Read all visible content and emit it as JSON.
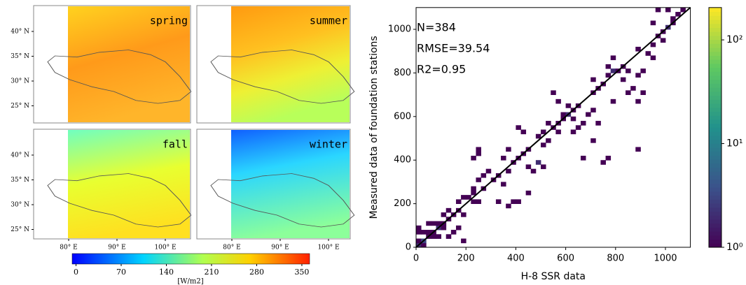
{
  "chart_data": [
    {
      "type": "map",
      "panels": [
        {
          "title": "spring"
        },
        {
          "title": "summer"
        },
        {
          "title": "fall"
        },
        {
          "title": "winter"
        }
      ],
      "lat_ticks": [
        {
          "value": 40,
          "label": "40° N"
        },
        {
          "value": 35,
          "label": "35° N"
        },
        {
          "value": 30,
          "label": "30° N"
        },
        {
          "value": 25,
          "label": "25° N"
        }
      ],
      "lon_ticks": [
        {
          "value": 80,
          "label": "80° E"
        },
        {
          "value": 90,
          "label": "90° E"
        },
        {
          "value": 100,
          "label": "100° E"
        }
      ],
      "colorbar": {
        "lim": [
          -6,
          362
        ],
        "ticks": [
          0,
          70,
          140,
          210,
          280,
          350
        ],
        "label": "[W/m2]"
      }
    },
    {
      "type": "histogram2d",
      "xlabel": "H-8 SSR data",
      "ylabel": "Measured data of foundation stations",
      "annotations": [
        "N=384",
        "RMSE=39.54",
        "R2=0.95"
      ],
      "xlim": [
        0,
        1100
      ],
      "ylim": [
        0,
        1100
      ],
      "xticks": [
        0,
        200,
        400,
        600,
        800,
        1000
      ],
      "yticks": [
        0,
        200,
        400,
        600,
        800,
        1000
      ],
      "bin_width": 20,
      "x": [
        0,
        20,
        0,
        20,
        40,
        20,
        0,
        0,
        40,
        60,
        80,
        60,
        80,
        100,
        100,
        120,
        100,
        60,
        80,
        120,
        140,
        160,
        40,
        120,
        140,
        160,
        180,
        180,
        200,
        220,
        240,
        160,
        180,
        220,
        260,
        240,
        260,
        220,
        240,
        240,
        220,
        300,
        320,
        340,
        360,
        380,
        400,
        360,
        380,
        400,
        420,
        440,
        360,
        340,
        420,
        400,
        440,
        460,
        480,
        500,
        480,
        500,
        520,
        540,
        560,
        520,
        560,
        580,
        600,
        620,
        600,
        640,
        560,
        540,
        580,
        620,
        660,
        640,
        620,
        700,
        680,
        700,
        720,
        700,
        740,
        760,
        780,
        800,
        820,
        840,
        780,
        760,
        820,
        840,
        880,
        900,
        880,
        860,
        900,
        920,
        940,
        880,
        940,
        960,
        980,
        1000,
        1020,
        1040,
        960,
        1000,
        1060,
        980,
        940,
        1020,
        880,
        700,
        440,
        760,
        740,
        660,
        320,
        280,
        500,
        780,
        720
      ],
      "y": [
        0,
        0,
        20,
        20,
        40,
        60,
        60,
        80,
        60,
        60,
        80,
        100,
        100,
        80,
        100,
        120,
        140,
        40,
        40,
        40,
        60,
        80,
        100,
        160,
        140,
        160,
        20,
        140,
        220,
        200,
        200,
        200,
        220,
        240,
        260,
        300,
        320,
        260,
        420,
        440,
        400,
        300,
        320,
        280,
        340,
        200,
        200,
        180,
        380,
        400,
        420,
        440,
        440,
        400,
        520,
        540,
        360,
        340,
        380,
        460,
        500,
        520,
        480,
        540,
        560,
        560,
        520,
        600,
        600,
        620,
        640,
        640,
        660,
        700,
        580,
        580,
        560,
        540,
        520,
        620,
        600,
        700,
        720,
        760,
        740,
        780,
        800,
        800,
        820,
        800,
        860,
        820,
        760,
        700,
        660,
        700,
        780,
        720,
        800,
        880,
        860,
        900,
        920,
        960,
        980,
        1000,
        1040,
        1060,
        1080,
        1080,
        1080,
        940,
        1020,
        1020,
        440,
        480,
        240,
        400,
        380,
        400,
        200,
        340,
        360,
        660,
        560
      ],
      "values": [
        2,
        1,
        1,
        3,
        1,
        1,
        1,
        1,
        1,
        1,
        2,
        1,
        1,
        1,
        1,
        1,
        1,
        1,
        1,
        1,
        1,
        1,
        1,
        1,
        1,
        1,
        1,
        1,
        1,
        1,
        1,
        1,
        1,
        1,
        1,
        1,
        1,
        1,
        1,
        1,
        1,
        1,
        1,
        1,
        1,
        1,
        1,
        1,
        1,
        1,
        1,
        1,
        1,
        1,
        1,
        1,
        1,
        1,
        2,
        1,
        1,
        1,
        1,
        1,
        1,
        1,
        1,
        1,
        2,
        1,
        1,
        1,
        1,
        1,
        1,
        1,
        1,
        1,
        1,
        1,
        1,
        1,
        1,
        1,
        1,
        1,
        2,
        1,
        1,
        1,
        1,
        1,
        1,
        1,
        1,
        1,
        1,
        1,
        1,
        1,
        1,
        1,
        1,
        1,
        1,
        2,
        1,
        1,
        1,
        1,
        1,
        1,
        1,
        1,
        1,
        1,
        1,
        1,
        1,
        1,
        1,
        1,
        1,
        1,
        1
      ],
      "fit_line": {
        "x": [
          0,
          1100
        ],
        "y": [
          0,
          1100
        ]
      },
      "colorbar": {
        "log": true,
        "lim": [
          1,
          205
        ],
        "ticks": [
          {
            "value": 1,
            "label": "10⁰"
          },
          {
            "value": 10,
            "label": "10¹"
          },
          {
            "value": 100,
            "label": "10²"
          }
        ]
      }
    }
  ]
}
